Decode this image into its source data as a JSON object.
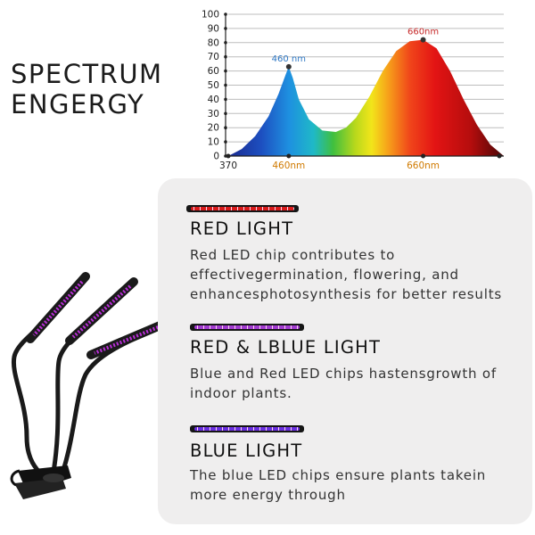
{
  "heading": {
    "line1": "SPECTRUM",
    "line2": "ENGERGY"
  },
  "chart_data": {
    "type": "area",
    "title": "",
    "xlabel": "",
    "ylabel": "",
    "ylim": [
      0,
      100
    ],
    "xlim": [
      370,
      780
    ],
    "y_ticks": [
      "0",
      "10",
      "20",
      "30",
      "40",
      "50",
      "60",
      "70",
      "80",
      "90",
      "100"
    ],
    "x_tick_labels": [
      {
        "x": 370,
        "label": "370",
        "color": "#222222"
      },
      {
        "x": 460,
        "label": "460nm",
        "color": "#d07a00"
      },
      {
        "x": 660,
        "label": "660nm",
        "color": "#d07a00"
      }
    ],
    "peak_labels": [
      {
        "x": 460,
        "y": 63,
        "label": "460 nm",
        "color": "#2f78c4"
      },
      {
        "x": 660,
        "y": 82,
        "label": "660nm",
        "color": "#c62828"
      }
    ],
    "series": [
      {
        "x": [
          370,
          390,
          410,
          430,
          445,
          455,
          460,
          466,
          475,
          490,
          510,
          530,
          545,
          560,
          580,
          600,
          620,
          640,
          660,
          680,
          700,
          720,
          740,
          760,
          780
        ],
        "y": [
          0,
          5,
          14,
          28,
          44,
          57,
          63,
          55,
          40,
          26,
          18,
          17,
          20,
          27,
          42,
          60,
          74,
          81,
          82,
          76,
          60,
          40,
          22,
          8,
          0
        ]
      }
    ],
    "grid": true
  },
  "sections": [
    {
      "heading": "RED LIGHT",
      "desc": [
        "Red LED chip contributes to",
        "effectivegermination, flowering, and",
        "enhancesphotosynthesis for better results"
      ],
      "bar_color": "#d81a1a"
    },
    {
      "heading": "RED & LBLUE LIGHT",
      "desc": [
        "Blue and Red LED chips hastensgrowth of",
        "indoor plants."
      ],
      "bar_color": "#a23bd0"
    },
    {
      "heading": "BLUE LIGHT",
      "desc": [
        "The blue LED chips ensure plants takein",
        "more energy through"
      ],
      "bar_color": "#6a2fe0"
    }
  ]
}
